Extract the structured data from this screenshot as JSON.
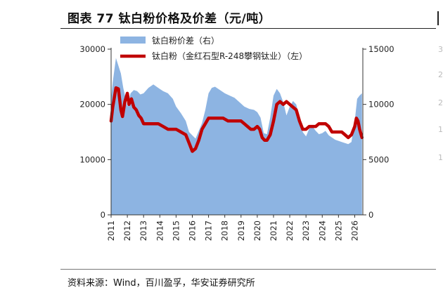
{
  "figure": {
    "title": "图表 77 钛白粉价格及价差（元/吨）",
    "source": "资料来源：Wind，百川盈孚，华安证券研究所"
  },
  "chart_data": {
    "type": "area",
    "x_ticks": [
      "2011",
      "2012",
      "2013",
      "2014",
      "2015",
      "2016",
      "2017",
      "2018",
      "2019",
      "2020",
      "2021",
      "2022",
      "2023",
      "2024",
      "2025",
      "2026"
    ],
    "left_axis": {
      "ylim": [
        0,
        30000
      ],
      "ticks": [
        "0",
        "10000",
        "20000",
        "30000"
      ]
    },
    "right_axis": {
      "ylim": [
        0,
        15000
      ],
      "ticks": [
        "0",
        "5000",
        "10000",
        "15000"
      ]
    },
    "legend_position": "top-left",
    "series": [
      {
        "name": "钛白粉价差（右）",
        "type": "area",
        "axis": "right",
        "color": "#8DB4E2",
        "x": [
          2011.0,
          2011.1,
          2011.3,
          2011.45,
          2011.6,
          2011.75,
          2011.9,
          2012.0,
          2012.2,
          2012.4,
          2012.6,
          2012.8,
          2013.0,
          2013.3,
          2013.6,
          2013.9,
          2014.2,
          2014.5,
          2014.8,
          2015.0,
          2015.3,
          2015.6,
          2015.8,
          2016.0,
          2016.2,
          2016.4,
          2016.6,
          2016.8,
          2017.0,
          2017.2,
          2017.4,
          2017.6,
          2017.8,
          2018.0,
          2018.3,
          2018.6,
          2018.9,
          2019.2,
          2019.5,
          2019.8,
          2020.0,
          2020.2,
          2020.4,
          2020.6,
          2020.8,
          2021.0,
          2021.2,
          2021.4,
          2021.6,
          2021.8,
          2022.0,
          2022.2,
          2022.4,
          2022.6,
          2022.8,
          2023.0,
          2023.2,
          2023.4,
          2023.6,
          2023.8,
          2024.0,
          2024.2,
          2024.4,
          2024.6,
          2024.8,
          2025.0,
          2025.2,
          2025.4,
          2025.6,
          2025.8,
          2026.0,
          2026.15,
          2026.3,
          2026.45
        ],
        "values": [
          10500,
          12000,
          14200,
          13500,
          12800,
          11500,
          10500,
          9800,
          11000,
          11300,
          11200,
          10900,
          11000,
          11500,
          11800,
          11500,
          11200,
          11000,
          10500,
          9800,
          9200,
          8500,
          7500,
          7200,
          6900,
          7600,
          8300,
          9500,
          11000,
          11500,
          11600,
          11400,
          11200,
          11000,
          10800,
          10600,
          10200,
          9800,
          9600,
          9500,
          9300,
          8800,
          7400,
          7300,
          8800,
          10800,
          11400,
          11000,
          10200,
          9000,
          9800,
          10300,
          10000,
          8800,
          7500,
          7100,
          7800,
          8000,
          7600,
          7300,
          7400,
          7600,
          7200,
          7000,
          6800,
          6700,
          6600,
          6500,
          6400,
          6600,
          8500,
          10500,
          10800,
          11000
        ]
      },
      {
        "name": "钛白粉（金红石型R-248攀钢钛业）（左）",
        "type": "line",
        "axis": "left",
        "color": "#C00000",
        "x": [
          2011.0,
          2011.1,
          2011.3,
          2011.45,
          2011.6,
          2011.7,
          2011.85,
          2012.0,
          2012.1,
          2012.25,
          2012.4,
          2012.55,
          2012.7,
          2012.85,
          2013.0,
          2013.3,
          2013.6,
          2013.9,
          2014.2,
          2014.5,
          2014.8,
          2015.0,
          2015.3,
          2015.6,
          2015.8,
          2016.0,
          2016.2,
          2016.4,
          2016.6,
          2016.8,
          2017.0,
          2017.3,
          2017.6,
          2017.9,
          2018.2,
          2018.5,
          2018.8,
          2019.0,
          2019.2,
          2019.4,
          2019.6,
          2019.8,
          2020.0,
          2020.15,
          2020.3,
          2020.45,
          2020.6,
          2020.8,
          2021.0,
          2021.2,
          2021.4,
          2021.6,
          2021.8,
          2022.0,
          2022.2,
          2022.4,
          2022.6,
          2022.8,
          2023.0,
          2023.2,
          2023.4,
          2023.6,
          2023.8,
          2024.0,
          2024.2,
          2024.4,
          2024.6,
          2024.8,
          2025.0,
          2025.2,
          2025.4,
          2025.6,
          2025.8,
          2026.0,
          2026.1,
          2026.2,
          2026.3,
          2026.45
        ],
        "values": [
          17000,
          19500,
          23000,
          22800,
          19000,
          17800,
          20500,
          22000,
          20000,
          21000,
          19500,
          19000,
          18000,
          17500,
          16500,
          16500,
          16500,
          16500,
          16000,
          15500,
          15500,
          15500,
          15000,
          14500,
          13000,
          11500,
          12000,
          13500,
          15500,
          16500,
          17500,
          17500,
          17500,
          17500,
          17000,
          17000,
          17000,
          17000,
          16500,
          16000,
          15500,
          15500,
          16000,
          15500,
          14000,
          13500,
          13500,
          14500,
          17000,
          20000,
          20500,
          20000,
          20500,
          20000,
          19500,
          19000,
          17000,
          15500,
          15500,
          16000,
          16000,
          16000,
          16500,
          16500,
          16500,
          16000,
          15000,
          15000,
          15000,
          15000,
          14500,
          14000,
          14500,
          16000,
          17500,
          17000,
          15500,
          14000
        ]
      }
    ]
  }
}
